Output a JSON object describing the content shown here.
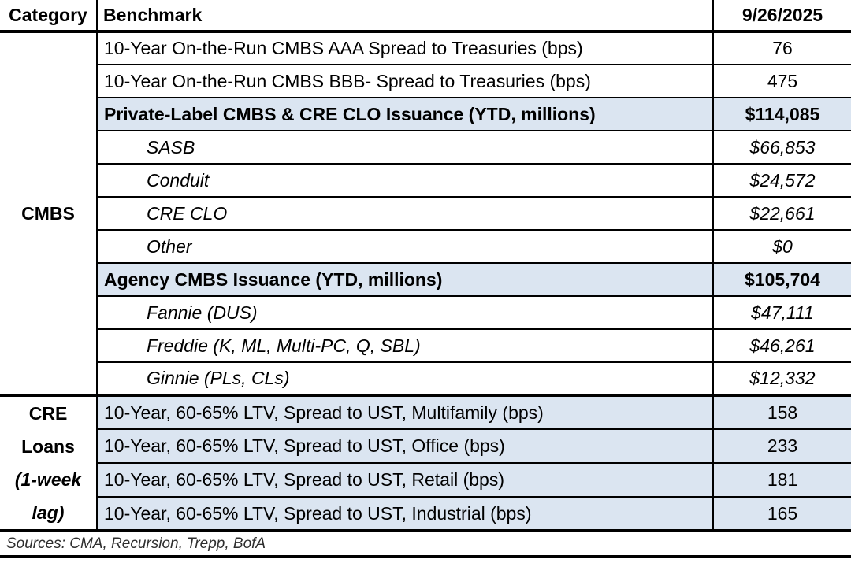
{
  "header": {
    "category": "Category",
    "benchmark": "Benchmark",
    "date": "9/26/2025"
  },
  "sections": [
    {
      "category": "CMBS",
      "category_lines": [
        {
          "text": "CMBS",
          "italic": false
        }
      ],
      "rows": [
        {
          "benchmark": "10-Year On-the-Run CMBS AAA Spread to Treasuries (bps)",
          "value": "76",
          "style": "normal"
        },
        {
          "benchmark": "10-Year On-the-Run CMBS BBB- Spread to Treasuries (bps)",
          "value": "475",
          "style": "normal"
        },
        {
          "benchmark": "Private-Label CMBS & CRE CLO Issuance (YTD, millions)",
          "value": "$114,085",
          "style": "subtotal"
        },
        {
          "benchmark": "SASB",
          "value": "$66,853",
          "style": "sub"
        },
        {
          "benchmark": "Conduit",
          "value": "$24,572",
          "style": "sub"
        },
        {
          "benchmark": "CRE CLO",
          "value": "$22,661",
          "style": "sub"
        },
        {
          "benchmark": "Other",
          "value": "$0",
          "style": "sub"
        },
        {
          "benchmark": "Agency CMBS Issuance (YTD, millions)",
          "value": "$105,704",
          "style": "subtotal"
        },
        {
          "benchmark": "Fannie (DUS)",
          "value": "$47,111",
          "style": "sub"
        },
        {
          "benchmark": "Freddie (K, ML, Multi-PC, Q, SBL)",
          "value": "$46,261",
          "style": "sub"
        },
        {
          "benchmark": "Ginnie (PLs, CLs)",
          "value": "$12,332",
          "style": "sub"
        }
      ]
    },
    {
      "category": "CRE Loans (1-week lag)",
      "category_lines": [
        {
          "text": "CRE",
          "italic": false
        },
        {
          "text": "Loans",
          "italic": false
        },
        {
          "text": "(1-week",
          "italic": true
        },
        {
          "text": "lag)",
          "italic": true
        }
      ],
      "rows": [
        {
          "benchmark": "10-Year, 60-65% LTV, Spread to UST, Multifamily (bps)",
          "value": "158",
          "style": "highlight"
        },
        {
          "benchmark": "10-Year, 60-65% LTV, Spread to UST, Office (bps)",
          "value": "233",
          "style": "highlight"
        },
        {
          "benchmark": "10-Year, 60-65% LTV, Spread to UST, Retail (bps)",
          "value": "181",
          "style": "highlight"
        },
        {
          "benchmark": "10-Year, 60-65% LTV, Spread to UST, Industrial (bps)",
          "value": "165",
          "style": "highlight"
        }
      ]
    }
  ],
  "footer": {
    "sources": "Sources: CMA, Recursion, Trepp, BofA"
  },
  "colors": {
    "highlight": "#dbe5f1",
    "border": "#000000",
    "text": "#000000",
    "background": "#ffffff"
  }
}
